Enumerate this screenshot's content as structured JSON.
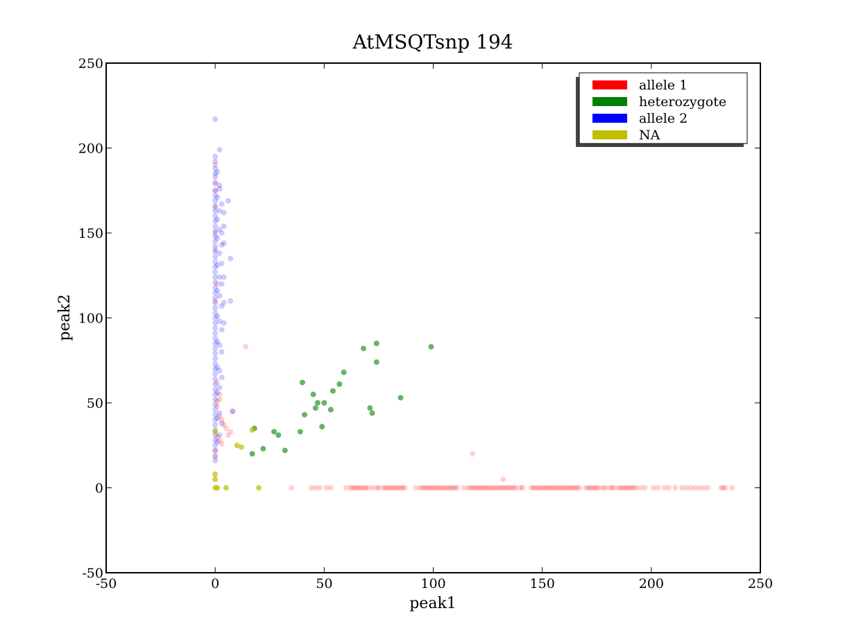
{
  "chart_data": {
    "type": "scatter",
    "title": "AtMSQTsnp 194",
    "xlabel": "peak1",
    "ylabel": "peak2",
    "xlim": [
      -50,
      250
    ],
    "ylim": [
      -50,
      250
    ],
    "xticks": [
      "-50",
      "0",
      "50",
      "100",
      "150",
      "200",
      "250"
    ],
    "yticks": [
      "-50",
      "0",
      "50",
      "100",
      "150",
      "200",
      "250"
    ],
    "grid": false,
    "legend_position": "top-right",
    "series": [
      {
        "name": "allele 1",
        "color": "#ff0000",
        "opacity": 0.18,
        "points": [
          [
            35,
            0
          ],
          [
            44,
            0
          ],
          [
            46,
            0
          ],
          [
            48,
            0
          ],
          [
            51,
            0
          ],
          [
            53,
            0
          ],
          [
            60,
            0
          ],
          [
            62,
            0
          ],
          [
            63,
            0
          ],
          [
            64,
            0
          ],
          [
            65,
            0
          ],
          [
            66,
            0
          ],
          [
            67,
            0
          ],
          [
            68,
            0
          ],
          [
            69,
            0
          ],
          [
            70,
            0
          ],
          [
            72,
            0
          ],
          [
            74,
            0
          ],
          [
            75,
            0
          ],
          [
            77,
            0
          ],
          [
            78,
            0
          ],
          [
            79,
            0
          ],
          [
            80,
            0
          ],
          [
            81,
            0
          ],
          [
            82,
            0
          ],
          [
            83,
            0
          ],
          [
            84,
            0
          ],
          [
            85,
            0
          ],
          [
            86,
            0
          ],
          [
            87,
            0
          ],
          [
            92,
            0
          ],
          [
            94,
            0
          ],
          [
            95,
            0
          ],
          [
            96,
            0
          ],
          [
            97,
            0
          ],
          [
            98,
            0
          ],
          [
            99,
            0
          ],
          [
            100,
            0
          ],
          [
            101,
            0
          ],
          [
            102,
            0
          ],
          [
            103,
            0
          ],
          [
            104,
            0
          ],
          [
            105,
            0
          ],
          [
            106,
            0
          ],
          [
            107,
            0
          ],
          [
            108,
            0
          ],
          [
            109,
            0
          ],
          [
            110,
            0
          ],
          [
            111,
            0
          ],
          [
            114,
            0
          ],
          [
            116,
            0
          ],
          [
            117,
            0
          ],
          [
            118,
            0
          ],
          [
            119,
            0
          ],
          [
            120,
            0
          ],
          [
            121,
            0
          ],
          [
            122,
            0
          ],
          [
            123,
            0
          ],
          [
            124,
            0
          ],
          [
            125,
            0
          ],
          [
            126,
            0
          ],
          [
            127,
            0
          ],
          [
            128,
            0
          ],
          [
            129,
            0
          ],
          [
            130,
            0
          ],
          [
            131,
            0
          ],
          [
            132,
            0
          ],
          [
            133,
            0
          ],
          [
            134,
            0
          ],
          [
            135,
            0
          ],
          [
            136,
            0
          ],
          [
            137,
            0
          ],
          [
            138,
            0
          ],
          [
            140,
            0
          ],
          [
            141,
            0
          ],
          [
            145,
            0
          ],
          [
            146,
            0
          ],
          [
            147,
            0
          ],
          [
            148,
            0
          ],
          [
            149,
            0
          ],
          [
            150,
            0
          ],
          [
            151,
            0
          ],
          [
            152,
            0
          ],
          [
            153,
            0
          ],
          [
            154,
            0
          ],
          [
            155,
            0
          ],
          [
            156,
            0
          ],
          [
            157,
            0
          ],
          [
            158,
            0
          ],
          [
            159,
            0
          ],
          [
            160,
            0
          ],
          [
            161,
            0
          ],
          [
            162,
            0
          ],
          [
            163,
            0
          ],
          [
            164,
            0
          ],
          [
            165,
            0
          ],
          [
            166,
            0
          ],
          [
            167,
            0
          ],
          [
            170,
            0
          ],
          [
            171,
            0
          ],
          [
            172,
            0
          ],
          [
            173,
            0
          ],
          [
            174,
            0
          ],
          [
            175,
            0
          ],
          [
            176,
            0
          ],
          [
            178,
            0
          ],
          [
            179,
            0
          ],
          [
            181,
            0
          ],
          [
            182,
            0
          ],
          [
            183,
            0
          ],
          [
            185,
            0
          ],
          [
            186,
            0
          ],
          [
            187,
            0
          ],
          [
            188,
            0
          ],
          [
            189,
            0
          ],
          [
            190,
            0
          ],
          [
            191,
            0
          ],
          [
            192,
            0
          ],
          [
            193,
            0
          ],
          [
            195,
            0
          ],
          [
            197,
            0
          ],
          [
            201,
            0
          ],
          [
            203,
            0
          ],
          [
            206,
            0
          ],
          [
            208,
            0
          ],
          [
            211,
            0
          ],
          [
            214,
            0
          ],
          [
            216,
            0
          ],
          [
            218,
            0
          ],
          [
            220,
            0
          ],
          [
            222,
            0
          ],
          [
            224,
            0
          ],
          [
            226,
            0
          ],
          [
            232,
            0
          ],
          [
            233,
            0
          ],
          [
            234,
            0
          ],
          [
            237,
            0
          ],
          [
            14,
            83
          ],
          [
            118,
            20
          ],
          [
            132,
            5
          ],
          [
            8,
            45
          ],
          [
            6,
            31
          ],
          [
            7,
            33
          ],
          [
            4,
            37
          ],
          [
            5,
            35
          ],
          [
            3,
            40
          ],
          [
            2,
            42
          ],
          [
            1,
            30
          ],
          [
            2,
            28
          ],
          [
            3,
            26
          ],
          [
            1,
            51
          ],
          [
            2,
            55
          ],
          [
            1,
            62
          ],
          [
            0,
            180
          ],
          [
            0,
            190
          ],
          [
            0,
            175
          ],
          [
            0,
            165
          ],
          [
            0,
            150
          ],
          [
            0,
            140
          ],
          [
            1,
            120
          ],
          [
            0,
            110
          ],
          [
            2,
            52
          ],
          [
            1,
            48
          ],
          [
            0,
            22
          ],
          [
            0,
            18
          ]
        ]
      },
      {
        "name": "heterozygote",
        "color": "#008000",
        "opacity": 0.6,
        "points": [
          [
            99,
            83
          ],
          [
            74,
            85
          ],
          [
            68,
            82
          ],
          [
            74,
            74
          ],
          [
            59,
            68
          ],
          [
            57,
            61
          ],
          [
            54,
            57
          ],
          [
            40,
            62
          ],
          [
            45,
            55
          ],
          [
            47,
            50
          ],
          [
            50,
            50
          ],
          [
            46,
            47
          ],
          [
            53,
            46
          ],
          [
            41,
            43
          ],
          [
            71,
            47
          ],
          [
            72,
            44
          ],
          [
            85,
            53
          ],
          [
            49,
            36
          ],
          [
            39,
            33
          ],
          [
            27,
            33
          ],
          [
            29,
            31
          ],
          [
            18,
            35
          ],
          [
            17,
            20
          ],
          [
            22,
            23
          ],
          [
            32,
            22
          ]
        ]
      },
      {
        "name": "allele 2",
        "color": "#0000ff",
        "opacity": 0.2,
        "points": [
          [
            0,
            217
          ],
          [
            0,
            195
          ],
          [
            0,
            192
          ],
          [
            0,
            188
          ],
          [
            0,
            185
          ],
          [
            0,
            183
          ],
          [
            0,
            179
          ],
          [
            0,
            175
          ],
          [
            0,
            172
          ],
          [
            0,
            169
          ],
          [
            0,
            166
          ],
          [
            0,
            163
          ],
          [
            0,
            160
          ],
          [
            0,
            157
          ],
          [
            0,
            154
          ],
          [
            0,
            151
          ],
          [
            0,
            148
          ],
          [
            0,
            145
          ],
          [
            0,
            142
          ],
          [
            0,
            139
          ],
          [
            0,
            136
          ],
          [
            0,
            133
          ],
          [
            0,
            130
          ],
          [
            0,
            127
          ],
          [
            0,
            124
          ],
          [
            0,
            121
          ],
          [
            0,
            118
          ],
          [
            0,
            115
          ],
          [
            0,
            112
          ],
          [
            0,
            109
          ],
          [
            0,
            106
          ],
          [
            0,
            103
          ],
          [
            0,
            100
          ],
          [
            0,
            97
          ],
          [
            0,
            94
          ],
          [
            0,
            91
          ],
          [
            0,
            88
          ],
          [
            0,
            85
          ],
          [
            0,
            82
          ],
          [
            0,
            79
          ],
          [
            0,
            76
          ],
          [
            0,
            73
          ],
          [
            0,
            70
          ],
          [
            0,
            67
          ],
          [
            0,
            64
          ],
          [
            0,
            61
          ],
          [
            0,
            58
          ],
          [
            0,
            55
          ],
          [
            0,
            52
          ],
          [
            0,
            49
          ],
          [
            0,
            46
          ],
          [
            0,
            43
          ],
          [
            0,
            40
          ],
          [
            0,
            37
          ],
          [
            0,
            34
          ],
          [
            0,
            31
          ],
          [
            0,
            28
          ],
          [
            0,
            25
          ],
          [
            0,
            22
          ],
          [
            0,
            19
          ],
          [
            0,
            16
          ],
          [
            1,
            186
          ],
          [
            1,
            171
          ],
          [
            1,
            158
          ],
          [
            1,
            147
          ],
          [
            1,
            131
          ],
          [
            1,
            116
          ],
          [
            1,
            101
          ],
          [
            1,
            86
          ],
          [
            1,
            71
          ],
          [
            1,
            56
          ],
          [
            1,
            41
          ],
          [
            1,
            27
          ],
          [
            2,
            178
          ],
          [
            2,
            163
          ],
          [
            2,
            152
          ],
          [
            2,
            138
          ],
          [
            2,
            124
          ],
          [
            2,
            113
          ],
          [
            2,
            98
          ],
          [
            2,
            84
          ],
          [
            2,
            69
          ],
          [
            2,
            59
          ],
          [
            2,
            44
          ],
          [
            2,
            31
          ],
          [
            2,
            199
          ],
          [
            2,
            176
          ],
          [
            3,
            167
          ],
          [
            3,
            150
          ],
          [
            3,
            143
          ],
          [
            3,
            132
          ],
          [
            3,
            120
          ],
          [
            3,
            107
          ],
          [
            3,
            93
          ],
          [
            3,
            80
          ],
          [
            3,
            65
          ],
          [
            3,
            38
          ],
          [
            4,
            162
          ],
          [
            4,
            154
          ],
          [
            4,
            144
          ],
          [
            4,
            124
          ],
          [
            4,
            109
          ],
          [
            4,
            97
          ],
          [
            6,
            169
          ],
          [
            7,
            135
          ],
          [
            7,
            110
          ],
          [
            8,
            45
          ]
        ]
      },
      {
        "name": "NA",
        "color": "#bfbf00",
        "opacity": 0.7,
        "points": [
          [
            0,
            33
          ],
          [
            0,
            8
          ],
          [
            0,
            5
          ],
          [
            0,
            0
          ],
          [
            1,
            0
          ],
          [
            5,
            0
          ],
          [
            20,
            0
          ],
          [
            10,
            25
          ],
          [
            12,
            24
          ],
          [
            17,
            34
          ]
        ]
      }
    ]
  }
}
